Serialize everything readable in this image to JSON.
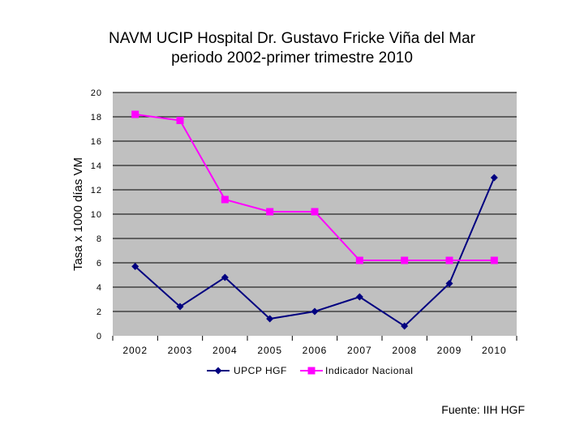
{
  "chart_data": {
    "type": "line",
    "title_lines": [
      "NAVM UCIP Hospital Dr. Gustavo Fricke Viña del Mar",
      "periodo 2002-primer trimestre 2010"
    ],
    "xlabel": "",
    "ylabel": "Tasa x 1000 días VM",
    "categories": [
      "2002",
      "2003",
      "2004",
      "2005",
      "2006",
      "2007",
      "2008",
      "2009",
      "2010"
    ],
    "ylim": [
      0,
      20
    ],
    "yticks": [
      "0",
      "2",
      "4",
      "6",
      "8",
      "10",
      "12",
      "14",
      "16",
      "18",
      "20"
    ],
    "grid": true,
    "legend_position": "bottom",
    "series": [
      {
        "name": "UPCP HGF",
        "color": "#000080",
        "marker": "diamond",
        "values": [
          5.7,
          2.4,
          4.8,
          1.4,
          2.0,
          3.2,
          0.8,
          4.3,
          13.0
        ]
      },
      {
        "name": "Indicador Nacional",
        "color": "#ff00ff",
        "marker": "square",
        "values": [
          18.2,
          17.7,
          11.2,
          10.2,
          10.2,
          6.2,
          6.2,
          6.2,
          6.2
        ]
      }
    ]
  },
  "source_note": "Fuente: IIH HGF",
  "colors": {
    "plot_bg": "#c0c0c0",
    "grid": "#000000"
  }
}
